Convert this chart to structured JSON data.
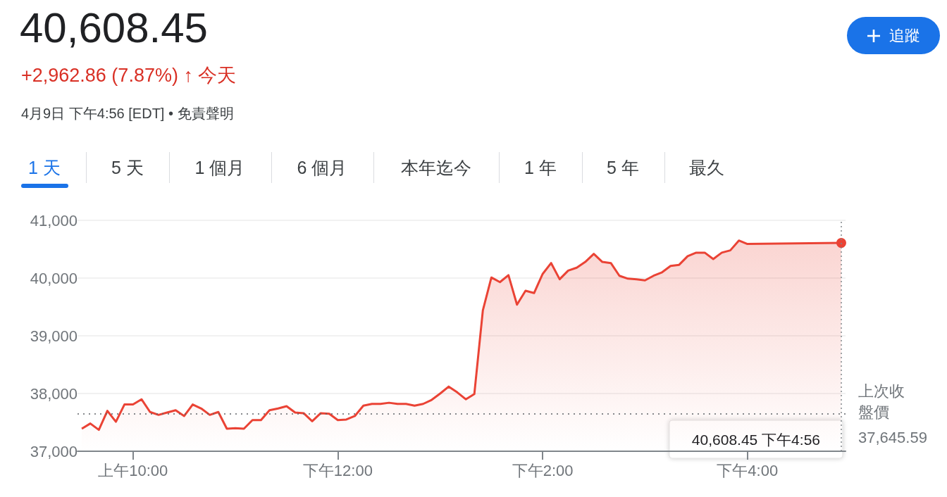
{
  "chart_data": {
    "type": "area",
    "title": "40,608.45",
    "subtitle": "+2,962.86 (7.87%) ↑ 今天",
    "annotations": [
      "4月9日 下午4:56 [EDT] • 免責聲明",
      "追蹤",
      "1 天",
      "5 天",
      "1 個月",
      "6 個月",
      "本年迄今",
      "1 年",
      "5 年",
      "最久",
      "40,608.45 下午4:56"
    ],
    "categories": [
      null,
      null,
      null,
      null,
      null,
      null,
      "上午10:00",
      null,
      null,
      null,
      null,
      null,
      null,
      null,
      null,
      null,
      null,
      null,
      null,
      null,
      null,
      null,
      null,
      null,
      null,
      null,
      null,
      null,
      null,
      null,
      "下午12:00",
      null,
      null,
      null,
      null,
      null,
      null,
      null,
      null,
      null,
      null,
      null,
      null,
      null,
      null,
      null,
      null,
      null,
      null,
      null,
      null,
      null,
      null,
      null,
      "下午2:00",
      null,
      null,
      null,
      null,
      null,
      null,
      null,
      null,
      null,
      null,
      null,
      null,
      null,
      null,
      null,
      null,
      null,
      null,
      null,
      null,
      null,
      null,
      null,
      "下午4:00",
      null,
      null,
      null,
      null,
      null,
      null,
      null,
      null,
      null,
      null,
      null
    ],
    "series": [
      {
        "color": "#ea4335",
        "values": [
          37390,
          37480,
          37370,
          37700,
          37510,
          37810,
          37810,
          37900,
          37680,
          37630,
          37670,
          37710,
          37610,
          37810,
          37740,
          37630,
          37680,
          37390,
          37400,
          37390,
          37540,
          37540,
          37710,
          37740,
          37780,
          37670,
          37660,
          37520,
          37660,
          37650,
          37540,
          37550,
          37610,
          37790,
          37820,
          37820,
          37840,
          37820,
          37820,
          37790,
          37820,
          37890,
          38000,
          38120,
          38020,
          37900,
          37990,
          39440,
          40010,
          39930,
          40050,
          39540,
          39780,
          39740,
          40070,
          40260,
          39980,
          40130,
          40180,
          40280,
          40420,
          40280,
          40260,
          40040,
          39990,
          39980,
          39960,
          40040,
          40100,
          40210,
          40230,
          40380,
          40440,
          40440,
          40330,
          40440,
          40480,
          40650,
          40590,
          null,
          null,
          null,
          null,
          null,
          null,
          null,
          null,
          null,
          null,
          40608.45
        ]
      }
    ],
    "ylim": [
      37000,
      41000
    ],
    "yticks": [
      {
        "value": 37000,
        "label": "37,000"
      },
      {
        "value": 38000,
        "label": "38,000"
      },
      {
        "value": 39000,
        "label": "39,000"
      },
      {
        "value": 40000,
        "label": "40,000"
      },
      {
        "value": 41000,
        "label": "41,000"
      }
    ],
    "grid": "y",
    "marker": "none",
    "line_style": "solid",
    "ref_lines": [
      {
        "axis": "y",
        "value": 37645.59,
        "label": "上次收盤價 37,645.59",
        "color": "#5f6368",
        "line_style": "dotted"
      }
    ]
  }
}
